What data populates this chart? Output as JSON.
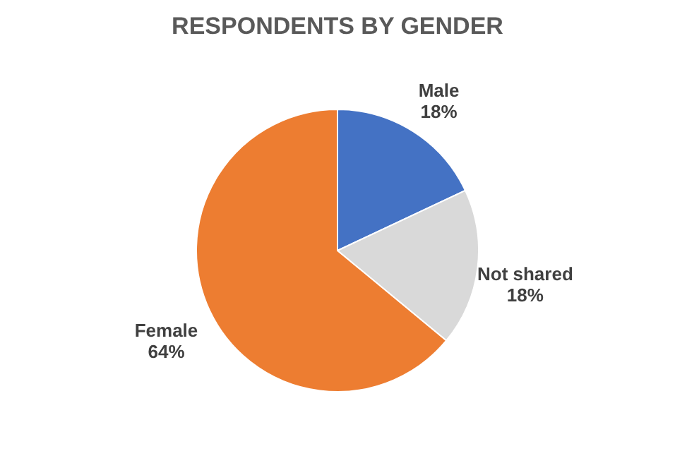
{
  "chart_data": {
    "type": "pie",
    "title": "RESPONDENTS BY GENDER",
    "categories": [
      "Male",
      "Not shared",
      "Female"
    ],
    "values": [
      18,
      18,
      64
    ],
    "value_labels": [
      "18%",
      "18%",
      "64%"
    ],
    "colors": [
      "#4472c4",
      "#d9d9d9",
      "#ed7d31"
    ],
    "legend": false
  }
}
